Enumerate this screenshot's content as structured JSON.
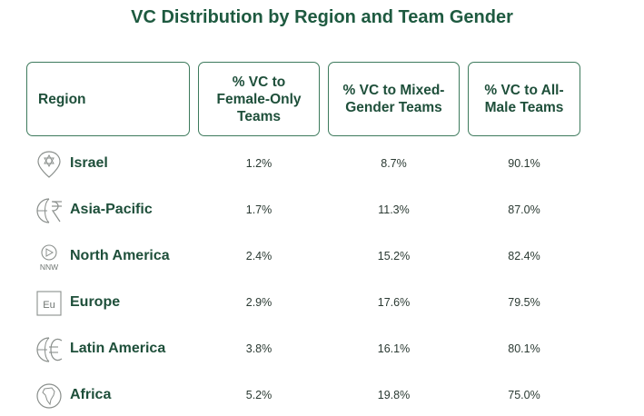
{
  "chart_data": {
    "type": "table",
    "title": "VC Distribution by Region and Team Gender",
    "columns": [
      "Region",
      "% VC to Female-Only Teams",
      "% VC to Mixed-Gender Teams",
      "% VC to All-Male Teams"
    ],
    "rows": [
      {
        "region": "Israel",
        "icon": "star-of-david-pin-icon",
        "female": "1.2%",
        "mixed": "8.7%",
        "male": "90.1%"
      },
      {
        "region": "Asia-Pacific",
        "icon": "rupee-globe-icon",
        "female": "1.7%",
        "mixed": "11.3%",
        "male": "87.0%"
      },
      {
        "region": "North America",
        "icon": "compass-nnw-icon",
        "female": "2.4%",
        "mixed": "15.2%",
        "male": "82.4%"
      },
      {
        "region": "Europe",
        "icon": "eu-box-icon",
        "female": "2.9%",
        "mixed": "17.6%",
        "male": "79.5%"
      },
      {
        "region": "Latin America",
        "icon": "euro-globe-icon",
        "female": "3.8%",
        "mixed": "16.1%",
        "male": "80.1%"
      },
      {
        "region": "Africa",
        "icon": "africa-globe-icon",
        "female": "5.2%",
        "mixed": "19.8%",
        "male": "75.0%"
      }
    ],
    "icon_labels": {
      "north_america": "NNW",
      "europe": "Eu"
    },
    "header_border_color": "#3d7a5c",
    "text_color": "#1e4f3a"
  }
}
